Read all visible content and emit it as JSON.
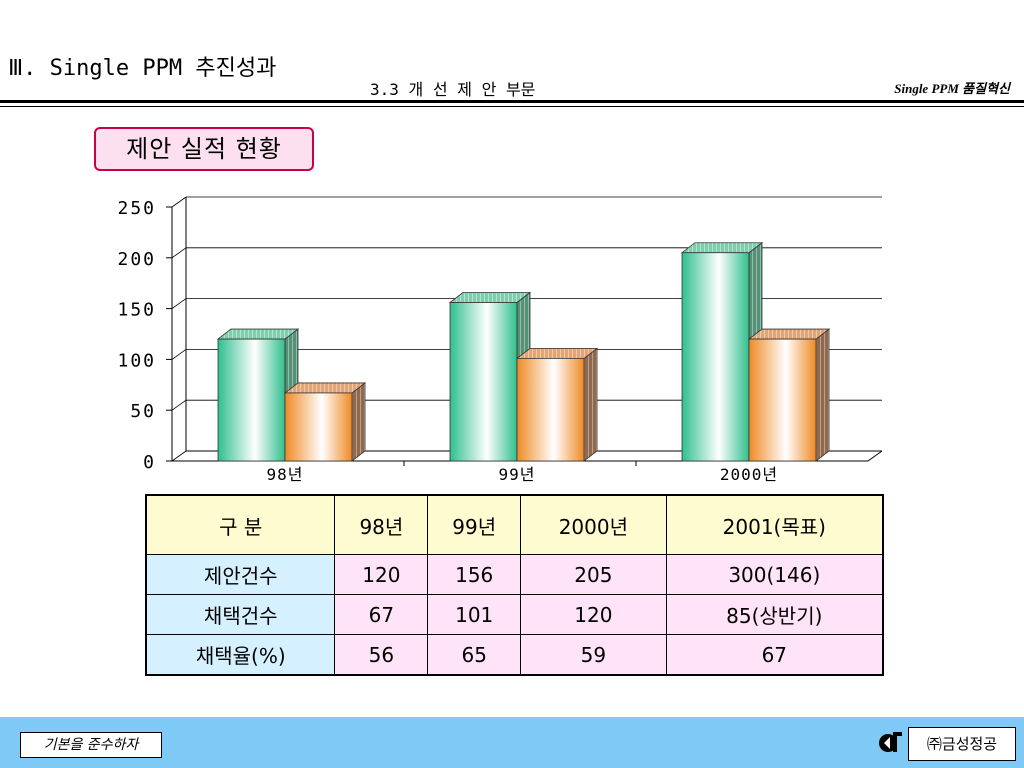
{
  "header": {
    "title": "Ⅲ. Single PPM 추진성과",
    "subtitle": "3.3 개 선 제 안 부문",
    "brand": "Single PPM 품질혁신"
  },
  "section": {
    "title": "제안 실적 현황"
  },
  "chart_data": {
    "type": "bar",
    "style": "3d-clustered",
    "categories": [
      "98년",
      "99년",
      "2000년"
    ],
    "series": [
      {
        "values": [
          120,
          156,
          205
        ],
        "color": "#39c79a"
      },
      {
        "values": [
          67,
          101,
          120
        ],
        "color": "#f39a3c"
      }
    ],
    "ylim": [
      0,
      250
    ],
    "yticks": [
      "0",
      "50",
      "100",
      "150",
      "200",
      "250"
    ],
    "grid": true,
    "legend": "none"
  },
  "table": {
    "header": [
      "구 분",
      "98년",
      "99년",
      "2000년",
      "2001(목표)"
    ],
    "rows": [
      {
        "label": "제안건수",
        "cells": [
          "120",
          "156",
          "205",
          "300(146)"
        ]
      },
      {
        "label": "채택건수",
        "cells": [
          "67",
          "101",
          "120",
          "85(상반기)"
        ]
      },
      {
        "label": "채택율(%)",
        "cells": [
          "56",
          "65",
          "59",
          "67"
        ]
      }
    ]
  },
  "footer": {
    "slogan": "기본을 준수하자",
    "company": "㈜금성정공",
    "logo_icon": "company-logo-icon"
  }
}
